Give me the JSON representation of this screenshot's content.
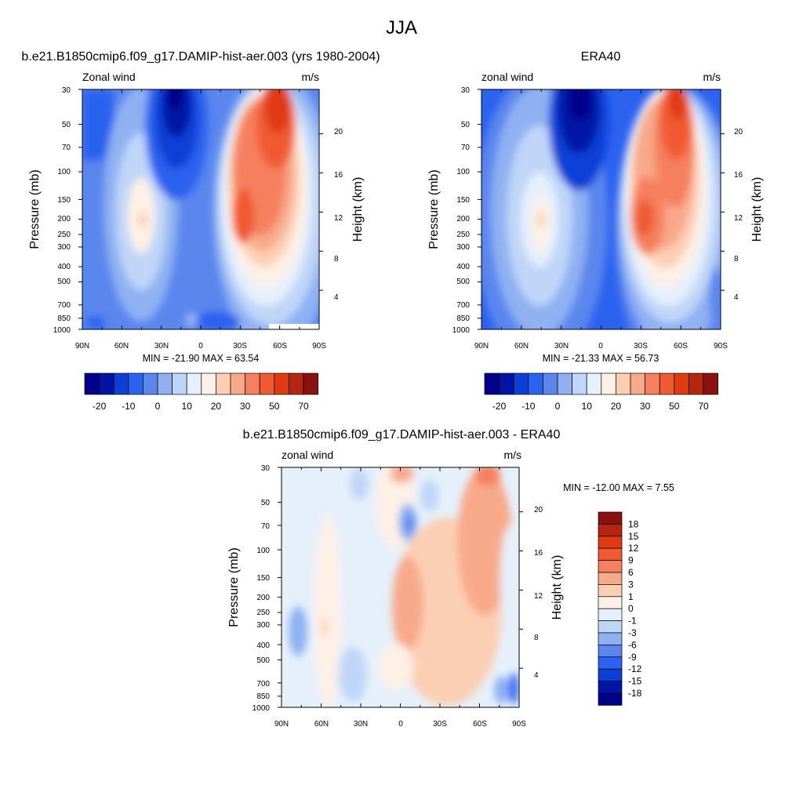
{
  "figure": {
    "title": "JJA"
  },
  "chart_data": [
    {
      "type": "heatmap",
      "panel": "model",
      "title": "b.e21.B1850cmip6.f09_g17.DAMIP-hist-aer.003 (yrs 1980-2004)",
      "left_label": "Zonal wind",
      "right_label": "m/s",
      "ylabel": "Pressure (mb)",
      "y2label": "Height (km)",
      "x_ticks": [
        "90N",
        "60N",
        "30N",
        "0",
        "30S",
        "60S",
        "90S"
      ],
      "y_ticks": [
        "30",
        "50",
        "70",
        "100",
        "150",
        "200",
        "250",
        "300",
        "400",
        "500",
        "700",
        "850",
        "1000"
      ],
      "y_tick_values": [
        30,
        50,
        70,
        100,
        150,
        200,
        250,
        300,
        400,
        500,
        700,
        850,
        1000
      ],
      "y2_ticks": [
        "20",
        "16",
        "12",
        "8",
        "4"
      ],
      "y2_tick_values": [
        20,
        16,
        12,
        8,
        4
      ],
      "x_range": [
        90,
        -90
      ],
      "y_range": [
        1000,
        30
      ],
      "y_scale": "log",
      "minmax_text": "MIN = -21.90  MAX =  63.54",
      "colorbar": {
        "orientation": "horizontal",
        "colors": [
          "#00008b",
          "#0015a6",
          "#0b3fd6",
          "#2c62f0",
          "#5a86ee",
          "#8fb1f2",
          "#c0d6f8",
          "#e6f0fb",
          "#fdf0e6",
          "#fbcfb4",
          "#f8a98a",
          "#f57f5e",
          "#f05a30",
          "#e03a13",
          "#b52612",
          "#8b1010"
        ],
        "labels": [
          "-20",
          "-10",
          "0",
          "10",
          "20",
          "30",
          "50",
          "70"
        ]
      }
    },
    {
      "type": "heatmap",
      "panel": "observations",
      "title": "ERA40",
      "left_label": "zonal wind",
      "right_label": "m/s",
      "ylabel": "Pressure (mb)",
      "y2label": "Height (km)",
      "x_ticks": [
        "90N",
        "60N",
        "30N",
        "0",
        "30S",
        "60S",
        "90S"
      ],
      "y_ticks": [
        "30",
        "50",
        "70",
        "100",
        "150",
        "200",
        "250",
        "300",
        "400",
        "500",
        "700",
        "850",
        "1000"
      ],
      "y_tick_values": [
        30,
        50,
        70,
        100,
        150,
        200,
        250,
        300,
        400,
        500,
        700,
        850,
        1000
      ],
      "y2_ticks": [
        "20",
        "16",
        "12",
        "8",
        "4"
      ],
      "y2_tick_values": [
        20,
        16,
        12,
        8,
        4
      ],
      "x_range": [
        90,
        -90
      ],
      "y_range": [
        1000,
        30
      ],
      "y_scale": "log",
      "minmax_text": "MIN = -21.33  MAX =  56.73",
      "colorbar": {
        "orientation": "horizontal",
        "colors": [
          "#00008b",
          "#0015a6",
          "#0b3fd6",
          "#2c62f0",
          "#5a86ee",
          "#8fb1f2",
          "#c0d6f8",
          "#e6f0fb",
          "#fdf0e6",
          "#fbcfb4",
          "#f8a98a",
          "#f57f5e",
          "#f05a30",
          "#e03a13",
          "#b52612",
          "#8b1010"
        ],
        "labels": [
          "-20",
          "-10",
          "0",
          "10",
          "20",
          "30",
          "50",
          "70"
        ]
      }
    },
    {
      "type": "heatmap",
      "panel": "difference",
      "title": "b.e21.B1850cmip6.f09_g17.DAMIP-hist-aer.003 - ERA40",
      "left_label": "zonal wind",
      "right_label": "m/s",
      "ylabel": "Pressure (mb)",
      "y2label": "Height (km)",
      "x_ticks": [
        "90N",
        "60N",
        "30N",
        "0",
        "30S",
        "60S",
        "90S"
      ],
      "y_ticks": [
        "30",
        "50",
        "70",
        "100",
        "150",
        "200",
        "250",
        "300",
        "400",
        "500",
        "700",
        "850",
        "1000"
      ],
      "y_tick_values": [
        30,
        50,
        70,
        100,
        150,
        200,
        250,
        300,
        400,
        500,
        700,
        850,
        1000
      ],
      "y2_ticks": [
        "20",
        "16",
        "12",
        "8",
        "4"
      ],
      "y2_tick_values": [
        20,
        16,
        12,
        8,
        4
      ],
      "x_range": [
        90,
        -90
      ],
      "y_range": [
        1000,
        30
      ],
      "y_scale": "log",
      "minmax_text": "MIN = -12.00  MAX =   7.55",
      "colorbar": {
        "orientation": "vertical",
        "colors": [
          "#8b1010",
          "#b52612",
          "#e03a13",
          "#f05a30",
          "#f57f5e",
          "#f8a98a",
          "#fbcfb4",
          "#fdf0e6",
          "#e6f0fb",
          "#c0d6f8",
          "#8fb1f2",
          "#5a86ee",
          "#2c62f0",
          "#0b3fd6",
          "#0015a6",
          "#00008b"
        ],
        "labels": [
          "18",
          "15",
          "12",
          "9",
          "6",
          "3",
          "1",
          "0",
          "-1",
          "-3",
          "-6",
          "-9",
          "-12",
          "-15",
          "-18"
        ]
      }
    }
  ]
}
